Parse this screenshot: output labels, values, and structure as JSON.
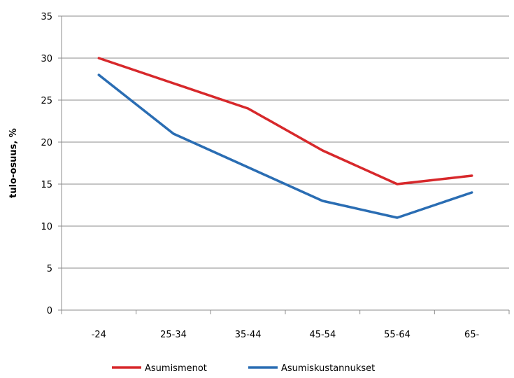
{
  "chart_data": {
    "type": "line",
    "title": "",
    "xlabel": "",
    "ylabel": "tulo-osuus, %",
    "categories": [
      "-24",
      "25-34",
      "35-44",
      "45-54",
      "55-64",
      "65-"
    ],
    "ylim": [
      0,
      35
    ],
    "yticks": [
      0,
      5,
      10,
      15,
      20,
      25,
      30,
      35
    ],
    "grid": true,
    "legend_position": "bottom",
    "series": [
      {
        "name": "Asumismenot",
        "color": "#d7282b",
        "values": [
          30,
          27,
          24,
          19,
          15,
          16
        ]
      },
      {
        "name": "Asumiskustannukset",
        "color": "#2a6db3",
        "values": [
          28,
          21,
          17,
          13,
          11,
          14
        ]
      }
    ]
  }
}
